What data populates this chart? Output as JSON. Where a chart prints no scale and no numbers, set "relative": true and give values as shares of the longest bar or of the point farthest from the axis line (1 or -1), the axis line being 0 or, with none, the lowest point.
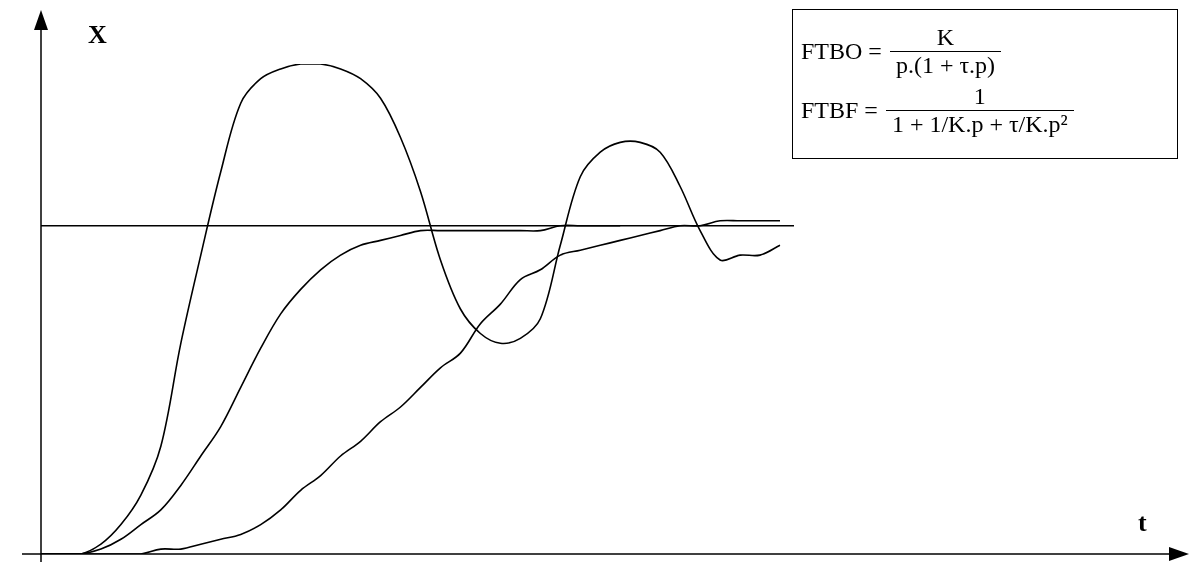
{
  "chart_data": {
    "type": "line",
    "ylabel": "X",
    "relative": true,
    "legend": false,
    "marker": "none",
    "line_style": "solid",
    "categories": [
      null,
      null,
      null,
      null,
      null,
      null,
      null,
      null,
      null,
      null,
      null,
      null,
      null,
      null,
      null,
      null,
      null,
      null,
      null,
      null,
      null,
      null,
      null,
      null,
      null,
      null,
      null,
      null,
      null,
      null,
      null,
      null,
      null,
      null,
      null,
      null,
      null,
      null
    ],
    "series": [
      {
        "color": "#000000",
        "values": [
          0,
          0,
          0,
          0.02,
          0.06,
          0.12,
          0.22,
          0.43,
          0.61,
          0.78,
          0.92,
          0.97,
          0.99,
          1.0,
          1.0,
          0.99,
          0.97,
          0.93,
          0.85,
          0.74,
          0.6,
          0.5,
          0.45,
          0.43,
          0.44,
          0.48,
          0.63,
          0.77,
          0.82,
          0.84,
          0.84,
          0.82,
          0.75,
          0.66,
          0.6,
          0.61,
          0.61,
          0.63
        ]
      },
      {
        "color": "#000000",
        "values": [
          0,
          0,
          0,
          0.01,
          0.03,
          0.06,
          0.09,
          0.14,
          0.2,
          0.26,
          0.34,
          0.42,
          0.49,
          0.54,
          0.58,
          0.61,
          0.63,
          0.64,
          0.65,
          0.66,
          0.66,
          0.66,
          0.66,
          0.66,
          0.66,
          0.66,
          0.67,
          0.67,
          0.67,
          0.67,
          null,
          null,
          null,
          null,
          null,
          null,
          null,
          null
        ]
      },
      {
        "color": "#000000",
        "values": [
          0,
          0,
          0,
          0,
          0,
          0,
          0.01,
          0.01,
          0.02,
          0.03,
          0.04,
          0.06,
          0.09,
          0.13,
          0.16,
          0.2,
          0.23,
          0.27,
          0.3,
          0.34,
          0.38,
          0.41,
          0.47,
          0.51,
          0.56,
          0.58,
          0.61,
          0.62,
          0.63,
          0.64,
          0.65,
          0.66,
          0.67,
          0.67,
          0.68,
          0.68,
          0.68,
          0.68
        ]
      }
    ],
    "ref_lines": [
      {
        "axis": "y",
        "value": 0.67,
        "color": "#000000"
      }
    ],
    "annotations": [
      "FTBO =",
      "K",
      "p.(1 + τ.p)",
      "FTBF =",
      "1",
      "1 + 1/K.p + τ/K.p²",
      "t"
    ]
  }
}
